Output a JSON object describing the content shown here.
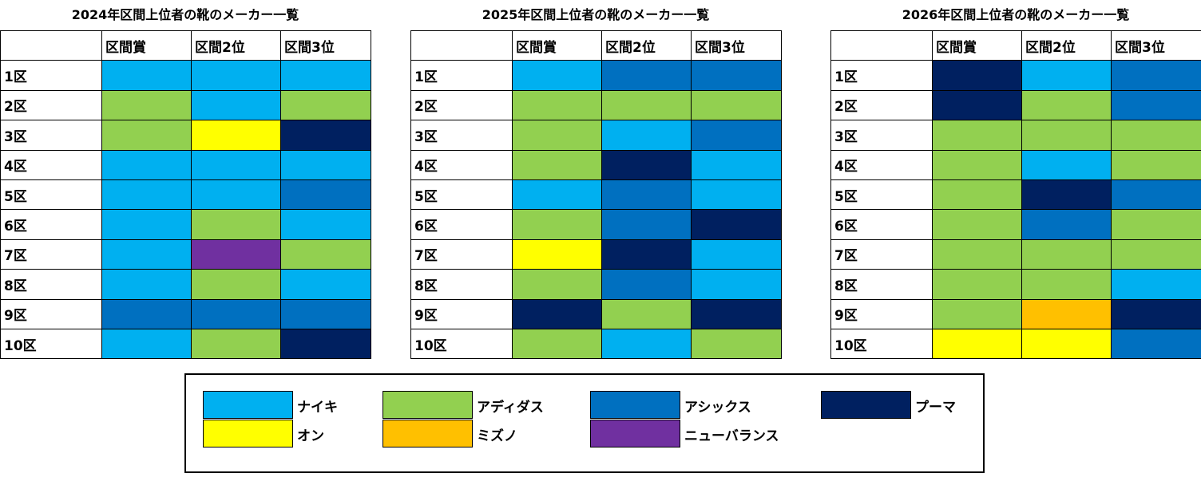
{
  "tables": [
    {
      "title": "2024年区間上位者の靴のメーカー一覧",
      "columns": [
        "区間賞",
        "区間2位",
        "区間3位"
      ],
      "rows": [
        {
          "label": "1区",
          "cells": [
            "ナイキ",
            "ナイキ",
            "ナイキ"
          ]
        },
        {
          "label": "2区",
          "cells": [
            "アディダス",
            "ナイキ",
            "アディダス"
          ]
        },
        {
          "label": "3区",
          "cells": [
            "アディダス",
            "オン",
            "プーマ"
          ]
        },
        {
          "label": "4区",
          "cells": [
            "ナイキ",
            "ナイキ",
            "ナイキ"
          ]
        },
        {
          "label": "5区",
          "cells": [
            "ナイキ",
            "ナイキ",
            "アシックス"
          ]
        },
        {
          "label": "6区",
          "cells": [
            "ナイキ",
            "アディダス",
            "ナイキ"
          ]
        },
        {
          "label": "7区",
          "cells": [
            "ナイキ",
            "ニューバランス",
            "アディダス"
          ]
        },
        {
          "label": "8区",
          "cells": [
            "ナイキ",
            "アディダス",
            "ナイキ"
          ]
        },
        {
          "label": "9区",
          "cells": [
            "アシックス",
            "アシックス",
            "アシックス"
          ]
        },
        {
          "label": "10区",
          "cells": [
            "ナイキ",
            "アディダス",
            "プーマ"
          ]
        }
      ]
    },
    {
      "title": "2025年区間上位者の靴のメーカー一覧",
      "columns": [
        "区間賞",
        "区間2位",
        "区間3位"
      ],
      "rows": [
        {
          "label": "1区",
          "cells": [
            "ナイキ",
            "アシックス",
            "アシックス"
          ]
        },
        {
          "label": "2区",
          "cells": [
            "アディダス",
            "アディダス",
            "アディダス"
          ]
        },
        {
          "label": "3区",
          "cells": [
            "アディダス",
            "ナイキ",
            "アシックス"
          ]
        },
        {
          "label": "4区",
          "cells": [
            "アディダス",
            "プーマ",
            "ナイキ"
          ]
        },
        {
          "label": "5区",
          "cells": [
            "ナイキ",
            "アシックス",
            "ナイキ"
          ]
        },
        {
          "label": "6区",
          "cells": [
            "アディダス",
            "アシックス",
            "プーマ"
          ]
        },
        {
          "label": "7区",
          "cells": [
            "オン",
            "プーマ",
            "ナイキ"
          ]
        },
        {
          "label": "8区",
          "cells": [
            "アディダス",
            "アシックス",
            "ナイキ"
          ]
        },
        {
          "label": "9区",
          "cells": [
            "プーマ",
            "アディダス",
            "プーマ"
          ]
        },
        {
          "label": "10区",
          "cells": [
            "アディダス",
            "ナイキ",
            "アディダス"
          ]
        }
      ]
    },
    {
      "title": "2026年区間上位者の靴のメーカー一覧",
      "columns": [
        "区間賞",
        "区間2位",
        "区間3位"
      ],
      "rows": [
        {
          "label": "1区",
          "cells": [
            "プーマ",
            "ナイキ",
            "アシックス"
          ]
        },
        {
          "label": "2区",
          "cells": [
            "プーマ",
            "アディダス",
            "アシックス"
          ]
        },
        {
          "label": "3区",
          "cells": [
            "アディダス",
            "アディダス",
            "アディダス"
          ]
        },
        {
          "label": "4区",
          "cells": [
            "アディダス",
            "ナイキ",
            "アディダス"
          ]
        },
        {
          "label": "5区",
          "cells": [
            "アディダス",
            "プーマ",
            "アシックス"
          ]
        },
        {
          "label": "6区",
          "cells": [
            "アディダス",
            "アシックス",
            "アディダス"
          ]
        },
        {
          "label": "7区",
          "cells": [
            "アディダス",
            "アディダス",
            "アディダス"
          ]
        },
        {
          "label": "8区",
          "cells": [
            "アディダス",
            "アディダス",
            "ナイキ"
          ]
        },
        {
          "label": "9区",
          "cells": [
            "アディダス",
            "ミズノ",
            "プーマ"
          ]
        },
        {
          "label": "10区",
          "cells": [
            "オン",
            "オン",
            "アシックス"
          ]
        }
      ]
    }
  ],
  "legend": [
    {
      "name": "ナイキ",
      "color": "#00B0F0"
    },
    {
      "name": "アディダス",
      "color": "#92D050"
    },
    {
      "name": "アシックス",
      "color": "#0070C0"
    },
    {
      "name": "プーマ",
      "color": "#002060"
    },
    {
      "name": "オン",
      "color": "#FFFF00"
    },
    {
      "name": "ミズノ",
      "color": "#FFC000"
    },
    {
      "name": "ニューバランス",
      "color": "#7030A0"
    }
  ]
}
